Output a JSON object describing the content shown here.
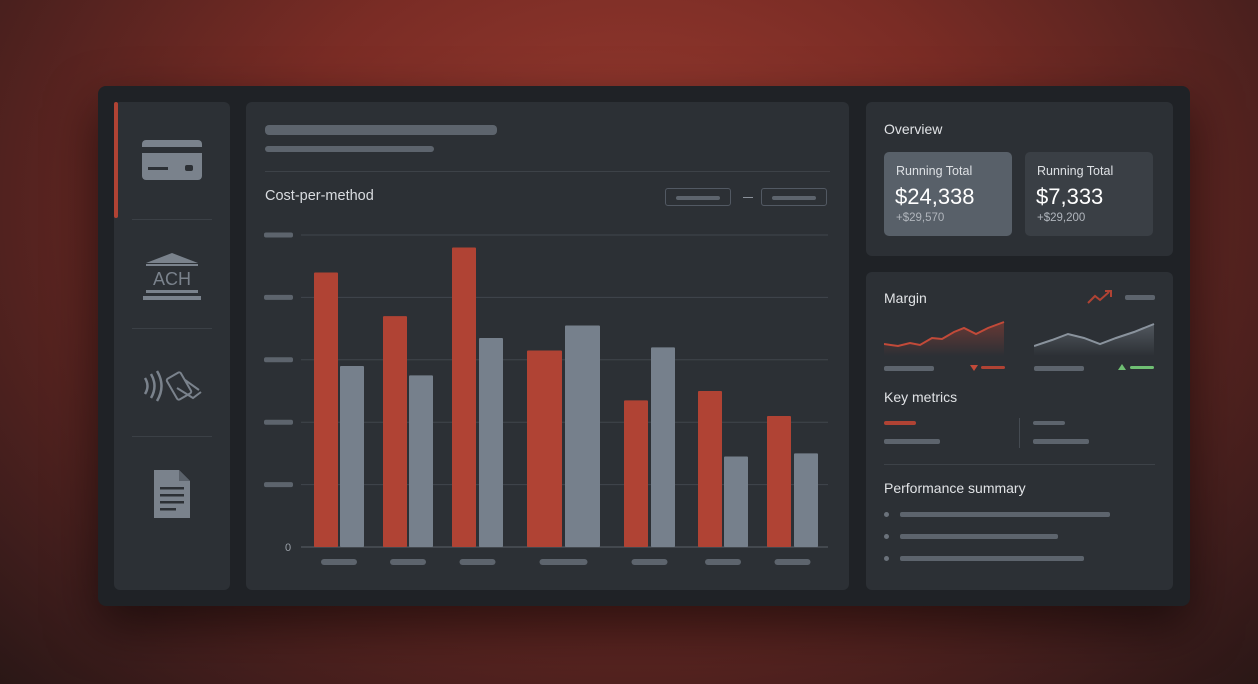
{
  "sidebar": {
    "items": [
      {
        "icon": "credit-card-icon",
        "active": true
      },
      {
        "icon": "ach-bank-icon",
        "label": "ACH"
      },
      {
        "icon": "contactless-payment-icon"
      },
      {
        "icon": "invoice-document-icon"
      }
    ]
  },
  "chart": {
    "title": "Cost-per-method",
    "y_zero_label": "0"
  },
  "chart_data": {
    "type": "bar",
    "title": "Cost-per-method",
    "categories": [
      "",
      "",
      "",
      "",
      "",
      "",
      ""
    ],
    "series": [
      {
        "values": [
          88,
          74,
          96,
          63,
          47,
          50,
          42
        ]
      },
      {
        "values": [
          58,
          55,
          67,
          71,
          64,
          29,
          30
        ]
      }
    ],
    "ylim": [
      0,
      100
    ],
    "grid": true,
    "colors": [
      "#b04334",
      "#76808c"
    ]
  },
  "overview": {
    "title": "Overview",
    "cards": [
      {
        "label": "Running Total",
        "value": "$24,338",
        "sub": "+$29,570"
      },
      {
        "label": "Running Total",
        "value": "$7,333",
        "sub": "+$29,200"
      }
    ]
  },
  "margin": {
    "title": "Margin",
    "key_metrics_title": "Key metrics",
    "performance_title": "Performance summary"
  },
  "colors": {
    "accent": "#b04334",
    "secondary": "#76808c",
    "positive": "#6fbf73"
  }
}
